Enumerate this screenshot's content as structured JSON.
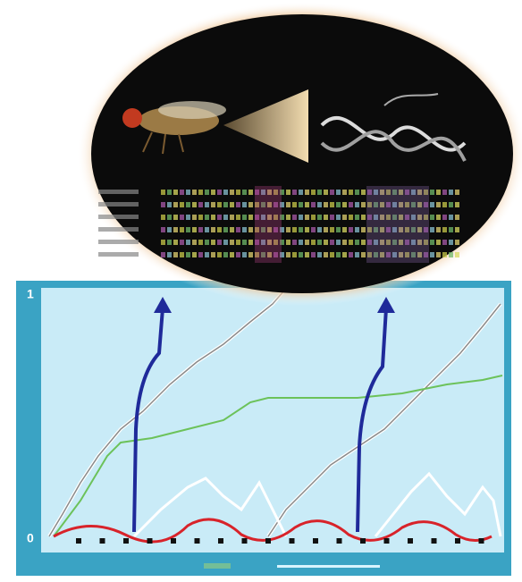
{
  "axis": {
    "top_label": "1",
    "bottom_label": "0"
  }
}
